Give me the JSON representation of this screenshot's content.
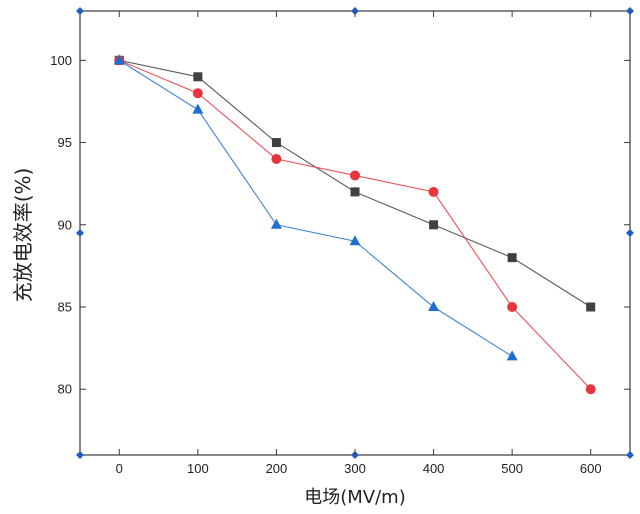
{
  "chart_data": {
    "type": "line",
    "title": "",
    "xlabel": "电场(MV/m)",
    "ylabel": "充放电效率(%)",
    "x": [
      0,
      100,
      200,
      300,
      400,
      500,
      600
    ],
    "xlim": [
      -50,
      650
    ],
    "ylim": [
      76,
      103
    ],
    "xticks": [
      "0",
      "100",
      "200",
      "300",
      "400",
      "500",
      "600"
    ],
    "yticks": [
      "80",
      "85",
      "90",
      "95",
      "100"
    ],
    "grid": false,
    "legend": "none",
    "series": [
      {
        "name": "series-square",
        "marker": "square",
        "color": "#404040",
        "x": [
          0,
          100,
          200,
          300,
          400,
          500,
          600
        ],
        "values": [
          100,
          99,
          95,
          92,
          90,
          88,
          85
        ]
      },
      {
        "name": "series-circle",
        "marker": "circle",
        "color": "#e8343c",
        "x": [
          0,
          100,
          200,
          300,
          400,
          500,
          600
        ],
        "values": [
          100,
          98,
          94,
          93,
          92,
          85,
          80
        ]
      },
      {
        "name": "series-triangle",
        "marker": "triangle",
        "color": "#1f6fd1",
        "x": [
          0,
          100,
          200,
          300,
          400,
          500
        ],
        "values": [
          100,
          97,
          90,
          89,
          85,
          82
        ]
      }
    ]
  }
}
